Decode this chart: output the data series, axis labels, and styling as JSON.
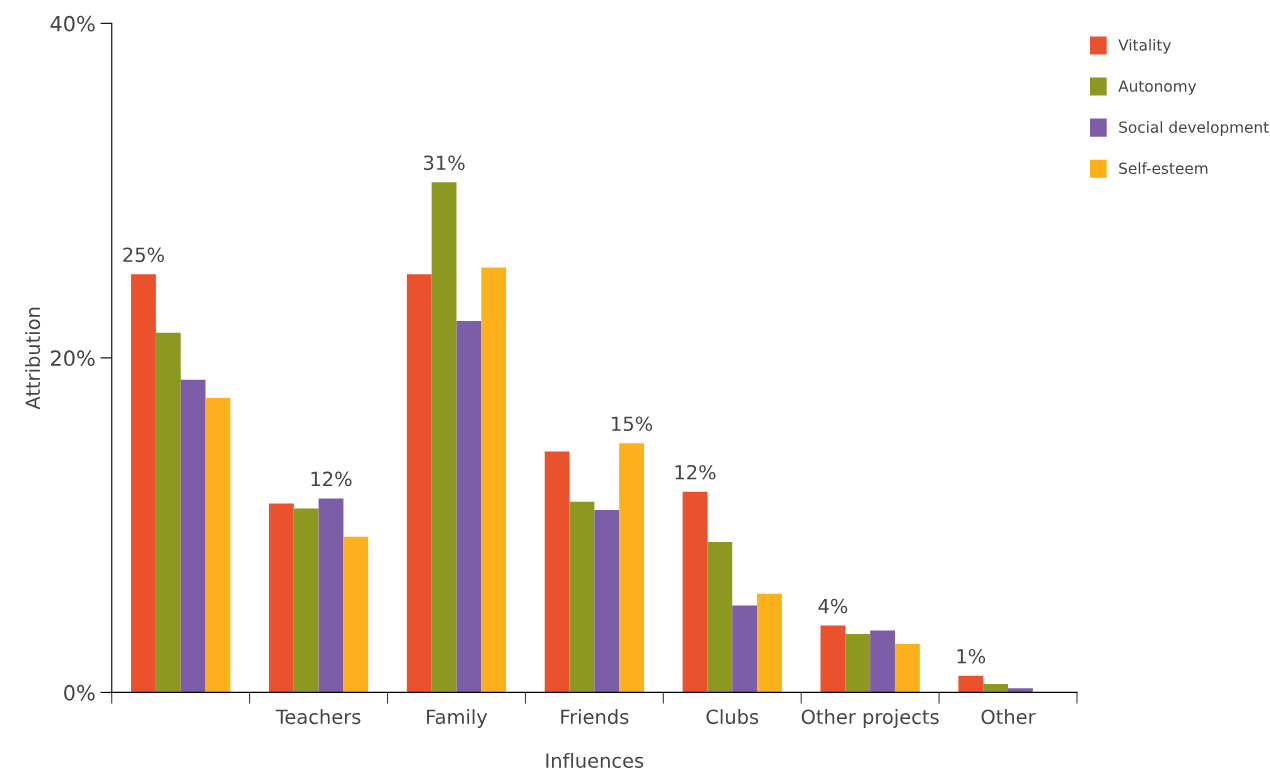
{
  "chart_data": {
    "type": "bar",
    "xlabel": "Influences",
    "ylabel": "Attribution",
    "categories": [
      null,
      "Teachers",
      "Family",
      "Friends",
      "Clubs",
      "Other projects",
      "Other"
    ],
    "series": [
      {
        "name": "Vitality",
        "color": "#e9522c",
        "values": [
          25,
          11.3,
          25,
          14.4,
          12,
          4,
          1
        ],
        "value_labels": [
          "25%",
          null,
          null,
          null,
          "12%",
          "4%",
          "1%"
        ]
      },
      {
        "name": "Autonomy",
        "color": "#8c9820",
        "values": [
          21.5,
          11,
          30.5,
          11.4,
          9,
          3.5,
          0.5
        ],
        "value_labels": [
          null,
          null,
          "31%",
          null,
          null,
          null,
          null
        ]
      },
      {
        "name": "Social development",
        "color": "#7b5ea7",
        "values": [
          18.7,
          11.6,
          22.2,
          10.9,
          5.2,
          3.7,
          0.25
        ],
        "value_labels": [
          null,
          "12%",
          null,
          null,
          null,
          null,
          null
        ]
      },
      {
        "name": "Self-esteem",
        "color": "#fbb01c",
        "values": [
          17.6,
          9.3,
          25.4,
          14.9,
          5.9,
          2.9,
          null
        ],
        "value_labels": [
          null,
          null,
          null,
          "15%",
          null,
          null,
          null
        ]
      }
    ],
    "ylim": [
      0,
      40
    ],
    "yticks": [
      {
        "value": 0,
        "label": "0%"
      },
      {
        "value": 20,
        "label": "20%"
      },
      {
        "value": 40,
        "label": "40%"
      }
    ],
    "grid": false,
    "legend": "top right"
  }
}
